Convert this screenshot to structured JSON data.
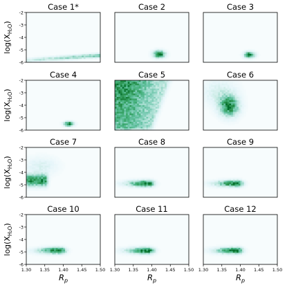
{
  "chart_data": {
    "type": "heatmap",
    "layout": "4x3 grid of 2D density plots",
    "colormap": [
      "#f7fcfd",
      "#e5f5f9",
      "#ccece6",
      "#99d8c9",
      "#66c2a4",
      "#41ae76",
      "#238b45",
      "#006d2c"
    ],
    "xlabel": "R_p",
    "ylabel": "log(X_H2O)",
    "xlim": [
      1.3,
      1.5
    ],
    "ylim": [
      -6,
      -2
    ],
    "x_ticks": [
      "1.30",
      "1.35",
      "1.40",
      "1.45",
      "1.50"
    ],
    "y_ticks": [
      "-2",
      "-3",
      "-4",
      "-5",
      "-6"
    ],
    "panels": [
      {
        "title": "Case 1*",
        "density": [
          {
            "shape": "band",
            "x0": 1.3,
            "x1": 1.5,
            "y_start": -5.85,
            "y_end": -5.45,
            "spread": 0.12,
            "peak": 0.55
          }
        ]
      },
      {
        "title": "Case 2",
        "density": [
          {
            "shape": "blob",
            "cx": 1.42,
            "cy": -5.35,
            "sx": 0.011,
            "sy": 0.2,
            "peak": 1.0
          }
        ]
      },
      {
        "title": "Case 3",
        "density": [
          {
            "shape": "blob",
            "cx": 1.425,
            "cy": -5.4,
            "sx": 0.01,
            "sy": 0.17,
            "peak": 0.95
          }
        ]
      },
      {
        "title": "Case 4",
        "density": [
          {
            "shape": "blob",
            "cx": 1.415,
            "cy": -5.5,
            "sx": 0.009,
            "sy": 0.13,
            "peak": 1.0
          }
        ]
      },
      {
        "title": "Case 5",
        "density": [
          {
            "shape": "wedge",
            "peak": 0.85
          }
        ]
      },
      {
        "title": "Case 6",
        "density": [
          {
            "shape": "blob",
            "cx": 1.37,
            "cy": -4.1,
            "sx": 0.018,
            "sy": 0.55,
            "peak": 0.9
          },
          {
            "shape": "blob",
            "cx": 1.345,
            "cy": -3.0,
            "sx": 0.03,
            "sy": 0.7,
            "peak": 0.25
          }
        ]
      },
      {
        "title": "Case 7",
        "density": [
          {
            "shape": "wall",
            "x0": 1.3,
            "x1": 1.35,
            "cy": -4.65,
            "sy": 0.32,
            "peak": 0.85
          },
          {
            "shape": "blob",
            "cx": 1.34,
            "cy": -3.5,
            "sx": 0.03,
            "sy": 0.5,
            "peak": 0.2
          }
        ]
      },
      {
        "title": "Case 8",
        "density": [
          {
            "shape": "tailblob",
            "cx": 1.39,
            "cy": -4.9,
            "sx": 0.012,
            "sy": 0.18,
            "peak": 0.95
          }
        ]
      },
      {
        "title": "Case 9",
        "density": [
          {
            "shape": "tailblob",
            "cx": 1.39,
            "cy": -4.9,
            "sx": 0.012,
            "sy": 0.18,
            "peak": 0.95
          }
        ]
      },
      {
        "title": "Case 10",
        "density": [
          {
            "shape": "tailblob",
            "cx": 1.39,
            "cy": -4.9,
            "sx": 0.012,
            "sy": 0.18,
            "peak": 0.95
          }
        ]
      },
      {
        "title": "Case 11",
        "density": [
          {
            "shape": "tailblob",
            "cx": 1.39,
            "cy": -4.9,
            "sx": 0.012,
            "sy": 0.18,
            "peak": 0.95
          }
        ]
      },
      {
        "title": "Case 12",
        "density": [
          {
            "shape": "tailblob",
            "cx": 1.39,
            "cy": -4.9,
            "sx": 0.012,
            "sy": 0.18,
            "peak": 0.95
          }
        ]
      }
    ]
  }
}
